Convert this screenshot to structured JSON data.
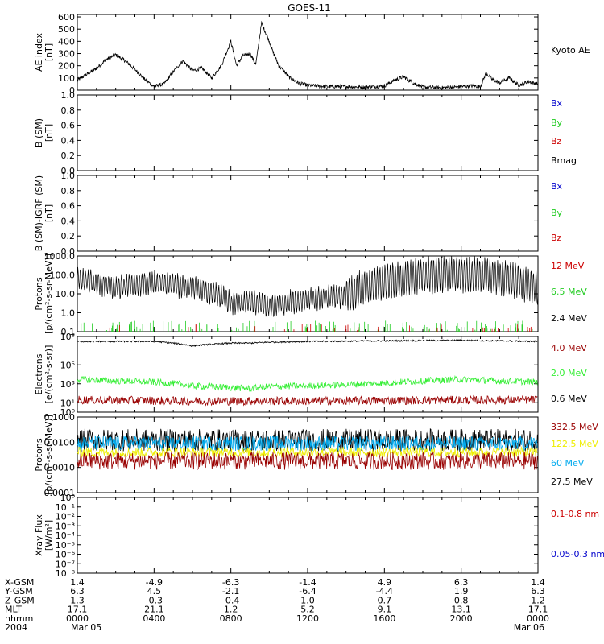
{
  "title": "GOES-11",
  "chart_data": [
    {
      "type": "line",
      "ylabel": [
        "AE index",
        "[nT]"
      ],
      "yticks": [
        "0",
        "100",
        "200",
        "300",
        "400",
        "500",
        "600"
      ],
      "ylim": [
        0,
        620
      ],
      "legend": [
        {
          "name": "Kyoto AE",
          "color": "#000000"
        }
      ],
      "series": [
        {
          "name": "Kyoto AE",
          "color": "#000000",
          "x_hours": [
            0,
            0.5,
            1,
            1.5,
            2,
            2.5,
            3,
            3.5,
            4,
            4.5,
            5,
            5.5,
            6,
            6.5,
            7,
            7.5,
            7.8,
            8,
            8.3,
            8.6,
            9,
            9.3,
            9.6,
            10,
            10.2,
            10.5,
            10.8,
            11,
            11.5,
            12,
            13,
            14,
            15,
            16,
            16.5,
            17,
            17.5,
            18,
            19,
            20,
            20.5,
            21,
            21.3,
            21.6,
            22,
            22.5,
            23,
            23.5,
            24
          ],
          "values": [
            80,
            130,
            180,
            250,
            290,
            240,
            170,
            90,
            30,
            50,
            150,
            240,
            160,
            180,
            100,
            200,
            320,
            400,
            200,
            280,
            300,
            210,
            550,
            400,
            310,
            200,
            150,
            110,
            60,
            40,
            30,
            30,
            25,
            35,
            80,
            110,
            60,
            25,
            20,
            30,
            35,
            30,
            140,
            90,
            60,
            100,
            40,
            70,
            50
          ]
        }
      ]
    },
    {
      "type": "line",
      "ylabel": [
        "B (SM)",
        "[nT]"
      ],
      "yticks": [
        "0.0",
        "0.2",
        "0.4",
        "0.6",
        "0.8",
        "1.0"
      ],
      "ylim": [
        0,
        1
      ],
      "legend": [
        {
          "name": "Bx",
          "color": "#0000cc"
        },
        {
          "name": "By",
          "color": "#22cc22"
        },
        {
          "name": "Bz",
          "color": "#cc0000"
        },
        {
          "name": "Bmag",
          "color": "#000000"
        }
      ],
      "series": []
    },
    {
      "type": "line",
      "ylabel": [
        "B (SM)-IGRF (SM)",
        "[nT]"
      ],
      "yticks": [
        "0.0",
        "0.2",
        "0.4",
        "0.6",
        "0.8",
        "1.0"
      ],
      "ylim": [
        0,
        1
      ],
      "legend": [
        {
          "name": "Bx",
          "color": "#0000cc"
        },
        {
          "name": "By",
          "color": "#22cc22"
        },
        {
          "name": "Bz",
          "color": "#cc0000"
        }
      ],
      "series": []
    },
    {
      "type": "line",
      "log_scale": true,
      "ylabel": [
        "Protons",
        "[p/(cm²-s-sr-MeV)]"
      ],
      "yticks": [
        "0.1",
        "1.0",
        "10.0",
        "100.0",
        "1000.0"
      ],
      "ylim": [
        0.1,
        1000
      ],
      "legend": [
        {
          "name": "12 MeV",
          "color": "#cc0000"
        },
        {
          "name": "6.5 MeV",
          "color": "#22cc22"
        },
        {
          "name": "2.4 MeV",
          "color": "#000000"
        }
      ],
      "series": [
        {
          "name": "2.4 MeV",
          "color": "#000000",
          "x_hours": [
            0,
            2,
            4,
            6,
            8,
            9,
            10,
            12,
            14,
            15,
            16,
            17,
            18,
            20,
            22,
            23,
            24
          ],
          "values": [
            60,
            20,
            40,
            20,
            3,
            4,
            2,
            5,
            8,
            20,
            40,
            60,
            100,
            110,
            80,
            40,
            20
          ]
        }
      ]
    },
    {
      "type": "line",
      "log_scale": true,
      "ylabel": [
        "Electrons",
        "[e/(cm²-s-sr)]"
      ],
      "yticks": [
        "10⁰",
        "10¹",
        "10³",
        "10⁵",
        "10⁸"
      ],
      "ylim": [
        1,
        100000000
      ],
      "legend": [
        {
          "name": "4.0 MeV",
          "color": "#990000"
        },
        {
          "name": "2.0 MeV",
          "color": "#33ee33"
        },
        {
          "name": "0.6 MeV",
          "color": "#000000"
        }
      ],
      "series": [
        {
          "name": "0.6 MeV",
          "color": "#000000",
          "x_hours": [
            0,
            4,
            6,
            8,
            9,
            10,
            12,
            16,
            20,
            24
          ],
          "values": [
            30000000,
            30000000,
            10000000,
            20000000,
            20000000,
            25000000,
            30000000,
            35000000,
            40000000,
            30000000
          ]
        },
        {
          "name": "2.0 MeV",
          "color": "#33ee33",
          "x_hours": [
            0,
            2,
            4,
            6,
            8,
            9,
            10,
            12,
            14,
            16,
            18,
            20,
            22,
            24
          ],
          "values": [
            3000,
            2000,
            1500,
            600,
            400,
            300,
            500,
            600,
            800,
            1200,
            2000,
            3000,
            2000,
            1500
          ]
        },
        {
          "name": "4.0 MeV",
          "color": "#990000",
          "x_hours": [
            0,
            6,
            12,
            18,
            24
          ],
          "values": [
            20,
            15,
            15,
            18,
            20
          ]
        }
      ]
    },
    {
      "type": "line",
      "log_scale": true,
      "ylabel": [
        "Protons",
        "[p/(cm²-s-sr-MeV)]"
      ],
      "yticks": [
        "0.0001",
        "0.0010",
        "0.0100",
        "0.1000"
      ],
      "ylim": [
        0.0001,
        0.1
      ],
      "legend": [
        {
          "name": "332.5 MeV",
          "color": "#990000"
        },
        {
          "name": "122.5 MeV",
          "color": "#eeee00"
        },
        {
          "name": "60 MeV",
          "color": "#00aaee"
        },
        {
          "name": "27.5 MeV",
          "color": "#000000"
        }
      ],
      "series": [
        {
          "name": "27.5 MeV",
          "color": "#000000",
          "level": 0.012
        },
        {
          "name": "60 MeV",
          "color": "#00aaee",
          "level": 0.009
        },
        {
          "name": "122.5 MeV",
          "color": "#eeee00",
          "level": 0.004
        },
        {
          "name": "332.5 MeV",
          "color": "#990000",
          "level": 0.0018
        }
      ]
    },
    {
      "type": "line",
      "log_scale": true,
      "ylabel": [
        "Xray Flux",
        "[W/m²]"
      ],
      "yticks": [
        "10⁻⁸",
        "10⁻⁷",
        "10⁻⁶",
        "10⁻⁵",
        "10⁻⁴",
        "10⁻³",
        "10⁻²",
        "10⁻¹",
        "10⁰"
      ],
      "ylim": [
        1e-08,
        1
      ],
      "legend": [
        {
          "name": "0.1-0.8 nm",
          "color": "#cc0000"
        },
        {
          "name": "0.05-0.3 nm",
          "color": "#0000cc"
        }
      ],
      "series": []
    }
  ],
  "xaxis": {
    "xlim_hours": [
      0,
      24
    ],
    "tick_hours": [
      0,
      4,
      8,
      12,
      16,
      20,
      24
    ],
    "rows": [
      {
        "label": "X-GSM",
        "values": [
          "1.4",
          "-4.9",
          "-6.3",
          "-1.4",
          "4.9",
          "6.3",
          "1.4"
        ]
      },
      {
        "label": "Y-GSM",
        "values": [
          "6.3",
          "4.5",
          "-2.1",
          "-6.4",
          "-4.4",
          "1.9",
          "6.3"
        ]
      },
      {
        "label": "Z-GSM",
        "values": [
          "1.3",
          "-0.3",
          "-0.4",
          "1.0",
          "0.7",
          "0.8",
          "1.2"
        ]
      },
      {
        "label": "MLT",
        "values": [
          "17.1",
          "21.1",
          "1.2",
          "5.2",
          "9.1",
          "13.1",
          "17.1"
        ]
      },
      {
        "label": "hhmm",
        "values": [
          "0000",
          "0400",
          "0800",
          "1200",
          "1600",
          "2000",
          "0000"
        ]
      },
      {
        "label": "2004",
        "values": [
          "Mar 05",
          "",
          "",
          "",
          "",
          "",
          "Mar 06"
        ]
      }
    ]
  }
}
